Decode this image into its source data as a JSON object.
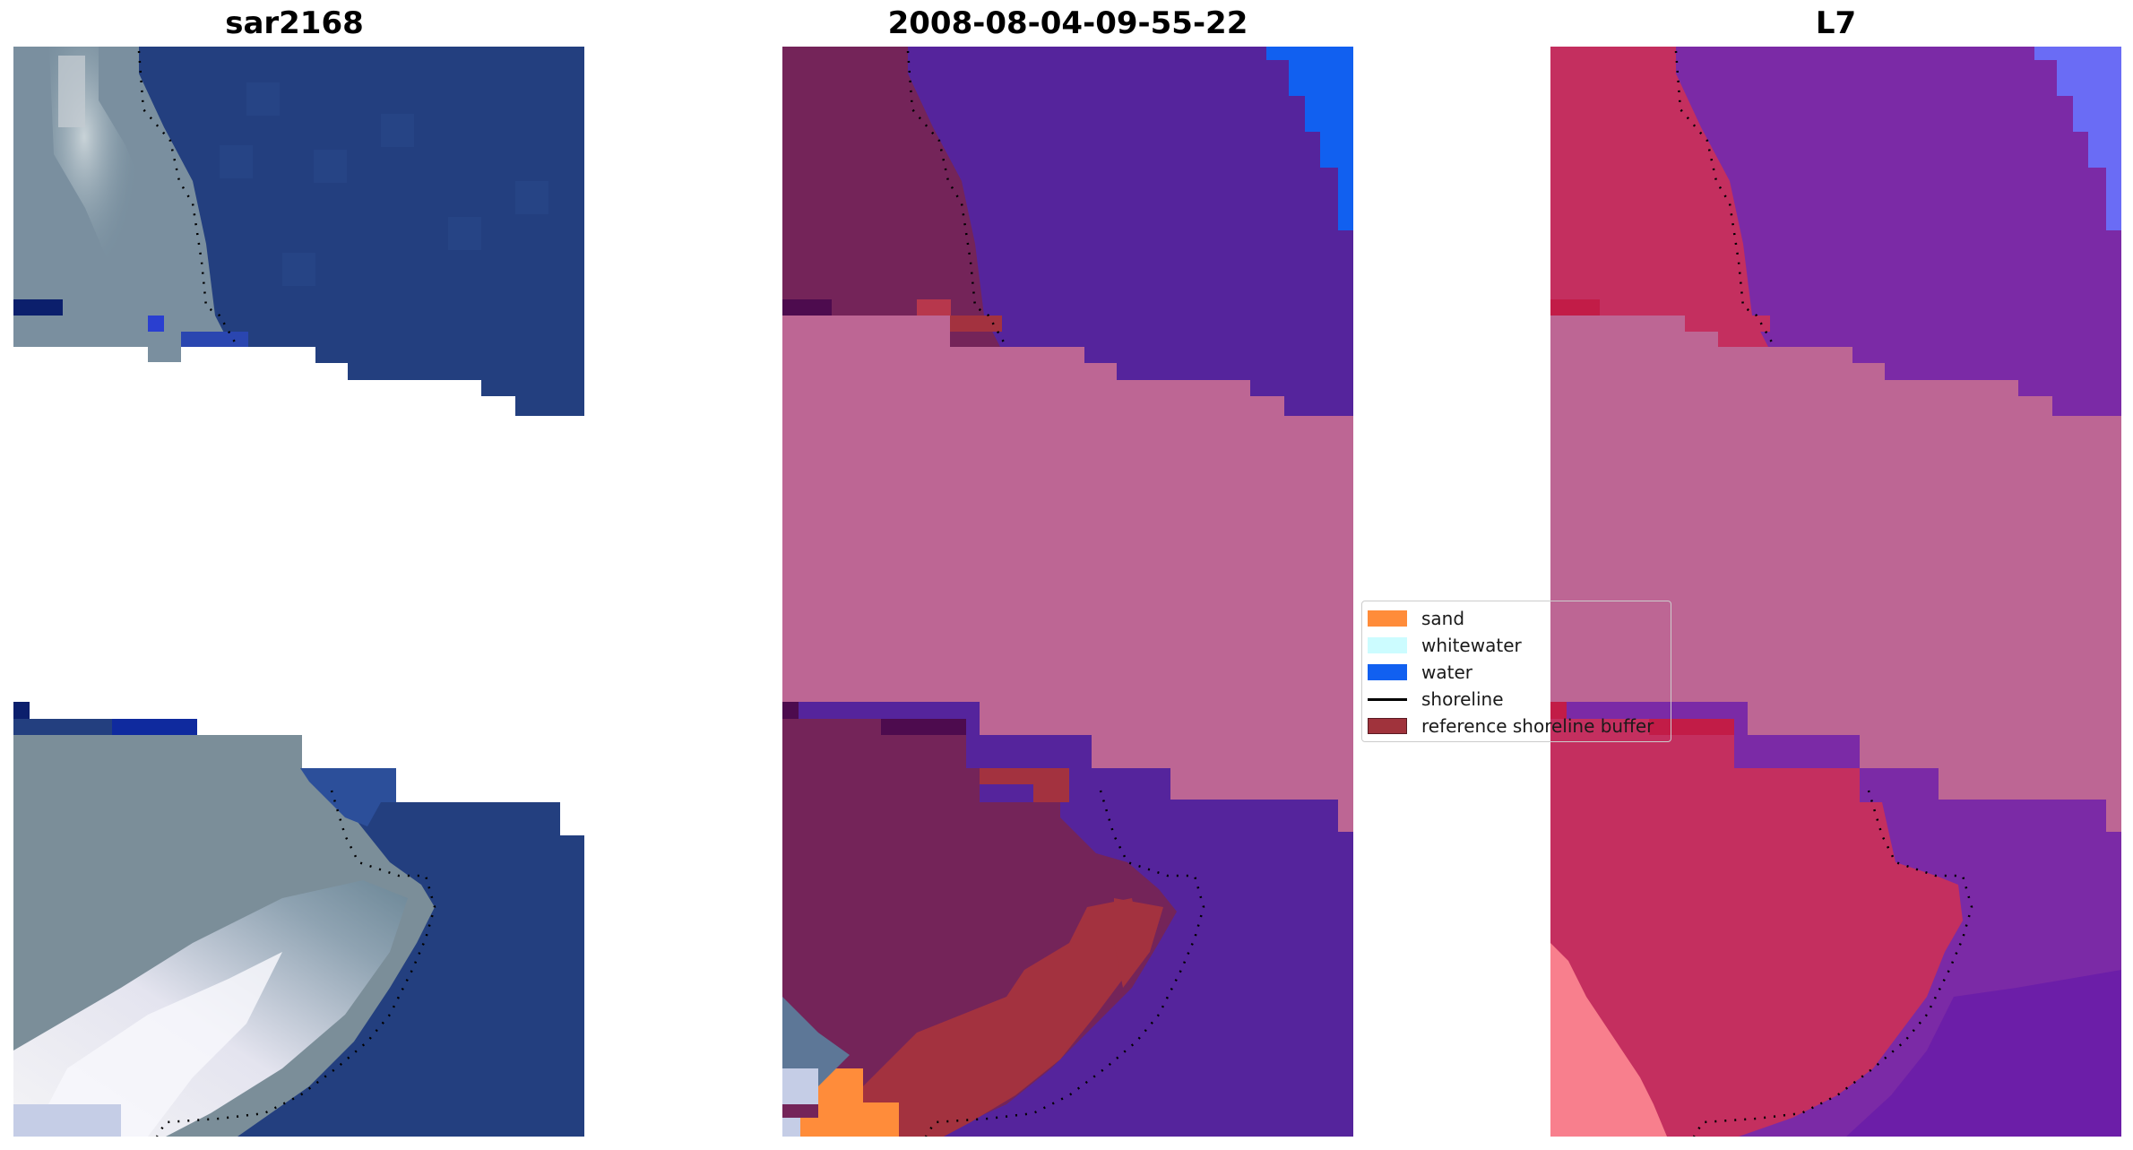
{
  "panels": [
    {
      "title": "sar2168"
    },
    {
      "title": "2008-08-04-09-55-22"
    },
    {
      "title": "L7"
    }
  ],
  "legend": {
    "items": [
      {
        "label": "sand",
        "kind": "patch",
        "color": "#ff8c3a"
      },
      {
        "label": "whitewater",
        "kind": "patch",
        "color": "#ccfcff"
      },
      {
        "label": "water",
        "kind": "patch",
        "color": "#1160f0"
      },
      {
        "label": "shoreline",
        "kind": "line",
        "color": "#000000"
      },
      {
        "label": "reference shoreline buffer",
        "kind": "patch",
        "color": "#a0333c"
      }
    ]
  },
  "colors": {
    "sea_rgb": "#1f3a78",
    "sea_class": "#55249c",
    "nodata_overlay": "#bd6694",
    "land_class": "#742459",
    "ndwi_land": "#c42f5f",
    "ndwi_sea": "#7b2aa6"
  }
}
